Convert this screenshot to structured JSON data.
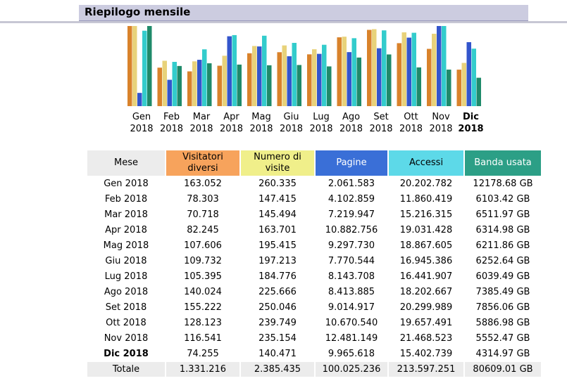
{
  "title": "Riepilogo mensile",
  "colors": {
    "visitatori": "#d9822b",
    "visite": "#e8d27a",
    "pagine": "#3355cc",
    "accessi": "#33cccc",
    "banda": "#1f8a6a"
  },
  "table": {
    "headers": [
      "Mese",
      "Visitatori diversi",
      "Numero di visite",
      "Pagine",
      "Accessi",
      "Banda usata"
    ],
    "rows": [
      {
        "mese": "Gen 2018",
        "visitatori": "163.052",
        "visite": "260.335",
        "pagine": "2.061.583",
        "accessi": "20.202.782",
        "banda": "12178.68 GB"
      },
      {
        "mese": "Feb 2018",
        "visitatori": "78.303",
        "visite": "147.415",
        "pagine": "4.102.859",
        "accessi": "11.860.419",
        "banda": "6103.42 GB"
      },
      {
        "mese": "Mar 2018",
        "visitatori": "70.718",
        "visite": "145.494",
        "pagine": "7.219.947",
        "accessi": "15.216.315",
        "banda": "6511.97 GB"
      },
      {
        "mese": "Apr 2018",
        "visitatori": "82.245",
        "visite": "163.701",
        "pagine": "10.882.756",
        "accessi": "19.031.428",
        "banda": "6314.98 GB"
      },
      {
        "mese": "Mag 2018",
        "visitatori": "107.606",
        "visite": "195.415",
        "pagine": "9.297.730",
        "accessi": "18.867.605",
        "banda": "6211.86 GB"
      },
      {
        "mese": "Giu 2018",
        "visitatori": "109.732",
        "visite": "197.213",
        "pagine": "7.770.544",
        "accessi": "16.945.386",
        "banda": "6252.64 GB"
      },
      {
        "mese": "Lug 2018",
        "visitatori": "105.395",
        "visite": "184.776",
        "pagine": "8.143.708",
        "accessi": "16.441.907",
        "banda": "6039.49 GB"
      },
      {
        "mese": "Ago 2018",
        "visitatori": "140.024",
        "visite": "225.666",
        "pagine": "8.413.885",
        "accessi": "18.202.667",
        "banda": "7385.49 GB"
      },
      {
        "mese": "Set 2018",
        "visitatori": "155.222",
        "visite": "250.046",
        "pagine": "9.014.917",
        "accessi": "20.299.989",
        "banda": "7856.06 GB"
      },
      {
        "mese": "Ott 2018",
        "visitatori": "128.123",
        "visite": "239.749",
        "pagine": "10.670.540",
        "accessi": "19.657.491",
        "banda": "5886.98 GB"
      },
      {
        "mese": "Nov 2018",
        "visitatori": "116.541",
        "visite": "235.154",
        "pagine": "12.481.149",
        "accessi": "21.468.523",
        "banda": "5552.47 GB"
      },
      {
        "mese": "Dic 2018",
        "visitatori": "74.255",
        "visite": "140.471",
        "pagine": "9.965.618",
        "accessi": "15.402.739",
        "banda": "4314.97 GB"
      }
    ],
    "total": {
      "mese": "Totale",
      "visitatori": "1.331.216",
      "visite": "2.385.435",
      "pagine": "100.025.236",
      "accessi": "213.597.251",
      "banda": "80609.01 GB"
    }
  },
  "chart_data": {
    "type": "bar",
    "categories": [
      "Gen 2018",
      "Feb 2018",
      "Mar 2018",
      "Apr 2018",
      "Mag 2018",
      "Giu 2018",
      "Lug 2018",
      "Ago 2018",
      "Set 2018",
      "Ott 2018",
      "Nov 2018",
      "Dic 2018"
    ],
    "labels": [
      {
        "month": "Gen",
        "year": "2018",
        "bold": false
      },
      {
        "month": "Feb",
        "year": "2018",
        "bold": false
      },
      {
        "month": "Mar",
        "year": "2018",
        "bold": false
      },
      {
        "month": "Apr",
        "year": "2018",
        "bold": false
      },
      {
        "month": "Mag",
        "year": "2018",
        "bold": false
      },
      {
        "month": "Giu",
        "year": "2018",
        "bold": false
      },
      {
        "month": "Lug",
        "year": "2018",
        "bold": false
      },
      {
        "month": "Ago",
        "year": "2018",
        "bold": false
      },
      {
        "month": "Set",
        "year": "2018",
        "bold": false
      },
      {
        "month": "Ott",
        "year": "2018",
        "bold": false
      },
      {
        "month": "Nov",
        "year": "2018",
        "bold": false
      },
      {
        "month": "Dic",
        "year": "2018",
        "bold": true
      }
    ],
    "series": [
      {
        "key": "visitatori",
        "values": [
          163052,
          78303,
          70718,
          82245,
          107606,
          109732,
          105395,
          140024,
          155222,
          128123,
          116541,
          74255
        ]
      },
      {
        "key": "visite",
        "values": [
          260335,
          147415,
          145494,
          163701,
          195415,
          197213,
          184776,
          225666,
          250046,
          239749,
          235154,
          140471
        ]
      },
      {
        "key": "pagine",
        "values": [
          2061583,
          4102859,
          7219947,
          10882756,
          9297730,
          7770544,
          8143708,
          8413885,
          9014917,
          10670540,
          12481149,
          9965618
        ]
      },
      {
        "key": "accessi",
        "values": [
          20202782,
          11860419,
          15216315,
          19031428,
          18867605,
          16945386,
          16441907,
          18202667,
          20299989,
          19657491,
          21468523,
          15402739
        ]
      },
      {
        "key": "banda",
        "values": [
          12178.68,
          6103.42,
          6511.97,
          6314.98,
          6211.86,
          6252.64,
          6039.49,
          7385.49,
          7856.06,
          5886.98,
          5552.47,
          4314.97
        ]
      }
    ]
  }
}
